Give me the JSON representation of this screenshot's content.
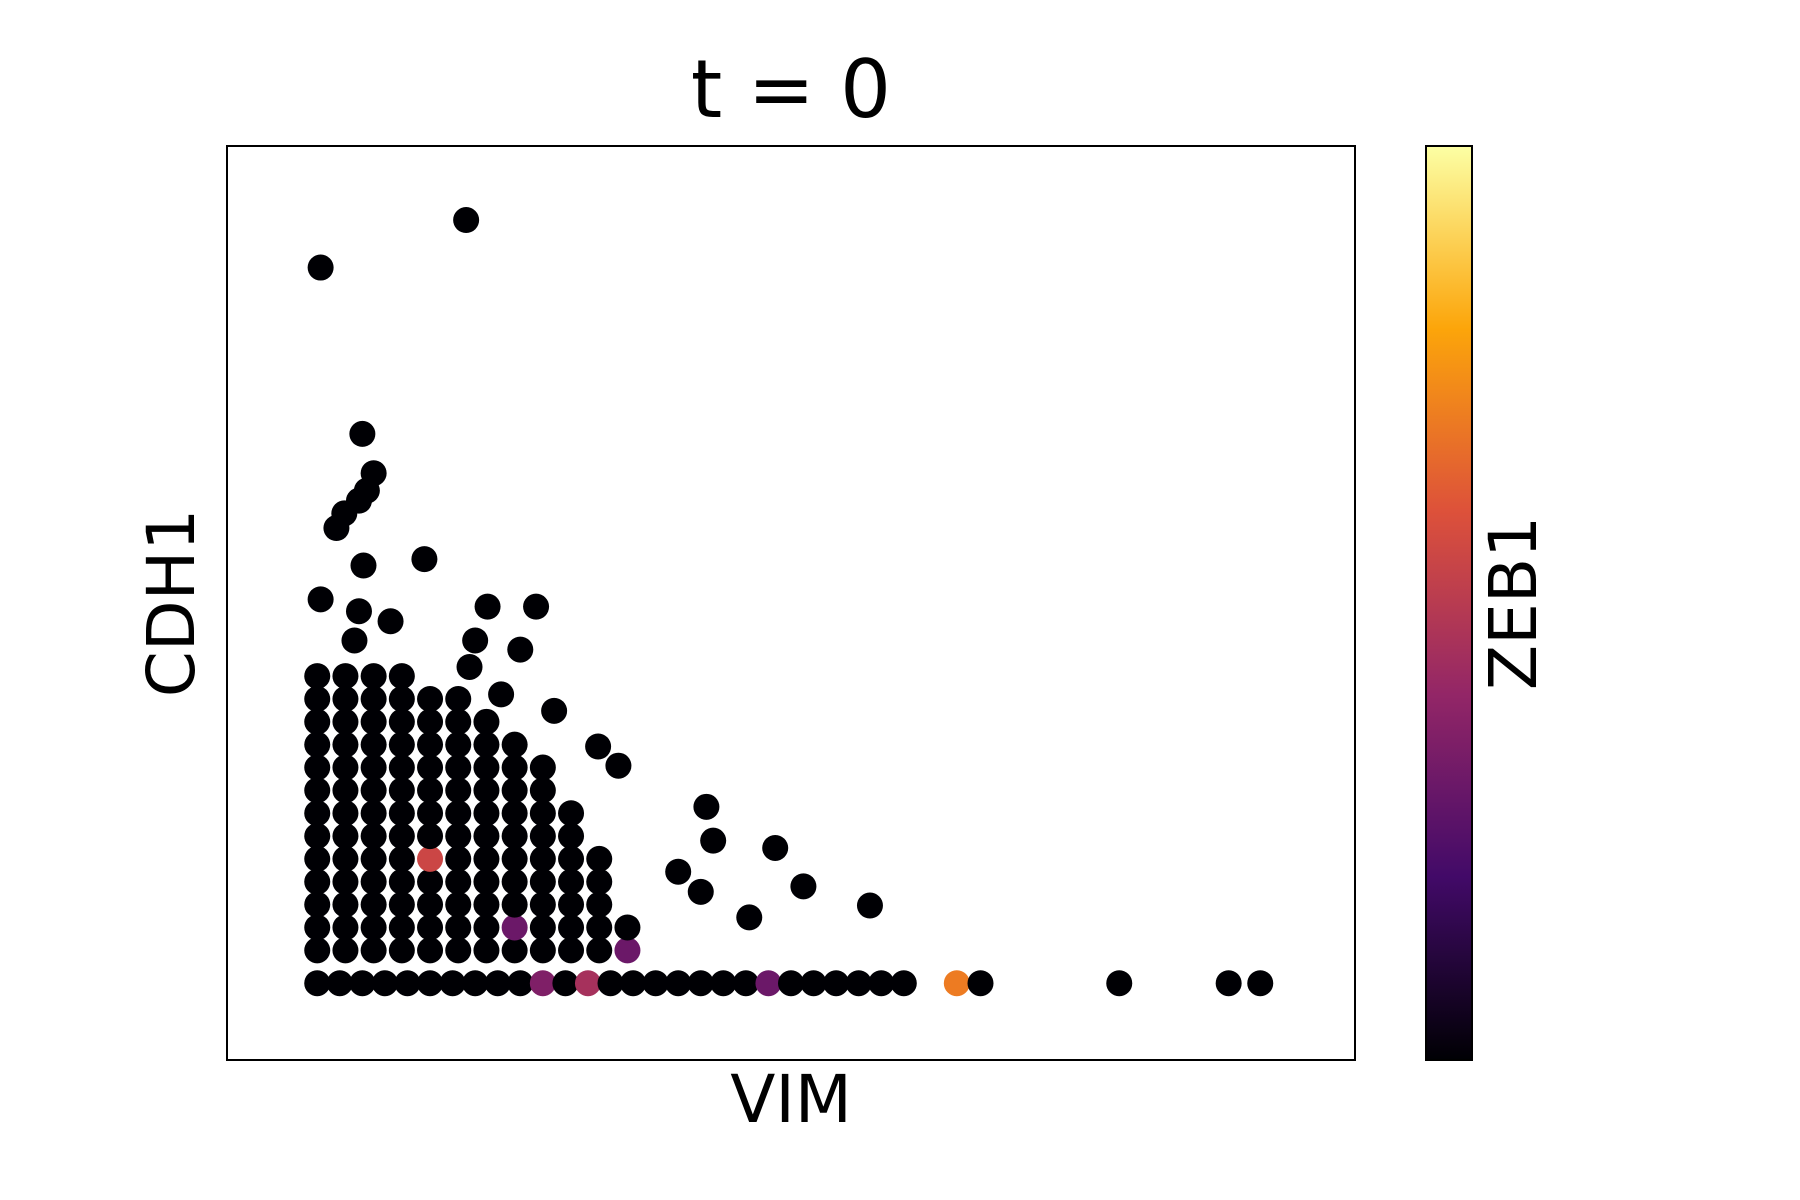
{
  "chart_data": {
    "type": "scatter",
    "title": "t = 0",
    "x_label": "VIM",
    "y_label": "CDH1",
    "colorbar_label": "ZEB1",
    "xlim": [
      0,
      10
    ],
    "ylim": [
      0,
      10
    ],
    "clim": [
      0,
      1
    ],
    "colormap": [
      "#000004",
      "#420a68",
      "#932667",
      "#dd513a",
      "#fca50a",
      "#fcffa4"
    ],
    "x": [
      0.8,
      1.05,
      1.3,
      1.55,
      1.8,
      2.05,
      2.3,
      2.55,
      2.8,
      3.05,
      3.3,
      3.55,
      0.8,
      1.05,
      1.3,
      1.55,
      1.8,
      2.05,
      2.3,
      2.55,
      2.8,
      3.05,
      3.3,
      3.55,
      0.8,
      1.05,
      1.3,
      1.55,
      1.8,
      2.05,
      2.3,
      2.55,
      2.8,
      3.05,
      3.3,
      0.8,
      1.05,
      1.3,
      1.55,
      1.8,
      2.05,
      2.3,
      2.55,
      2.8,
      3.05,
      3.3,
      0.8,
      1.05,
      1.3,
      1.55,
      1.8,
      2.05,
      2.3,
      2.55,
      2.8,
      3.05,
      3.3,
      0.8,
      1.05,
      1.3,
      1.55,
      1.8,
      2.05,
      2.3,
      2.55,
      2.8,
      3.05,
      0.8,
      1.05,
      1.3,
      1.55,
      1.8,
      2.05,
      2.3,
      2.55,
      2.8,
      3.05,
      0.8,
      1.05,
      1.3,
      1.55,
      1.8,
      2.05,
      2.3,
      2.55,
      2.8,
      0.8,
      1.05,
      1.3,
      1.55,
      1.8,
      2.05,
      2.3,
      2.55,
      2.8,
      0.8,
      1.05,
      1.3,
      1.55,
      1.8,
      2.05,
      2.3,
      2.55,
      0.8,
      1.05,
      1.3,
      1.55,
      1.8,
      2.05,
      2.3,
      0.8,
      1.05,
      1.3,
      1.55,
      1.8,
      2.05,
      0.8,
      1.05,
      1.3,
      1.55,
      0.8,
      1.0,
      1.2,
      1.4,
      1.6,
      1.8,
      2.0,
      2.2,
      2.4,
      2.6,
      2.8,
      3.0,
      3.2,
      3.4,
      3.6,
      3.8,
      4.0,
      4.2,
      4.4,
      4.6,
      4.8,
      5.0,
      5.2,
      5.4,
      5.6,
      5.8,
      6.0,
      6.47,
      6.68,
      7.91,
      8.88,
      9.16,
      0.83,
      2.12,
      1.2,
      1.3,
      1.24,
      1.17,
      1.04,
      0.97,
      1.21,
      1.75,
      0.83,
      2.31,
      2.74,
      1.17,
      1.45,
      2.6,
      2.2,
      1.13,
      2.15,
      2.43,
      2.9,
      3.29,
      3.47,
      4.25,
      4.31,
      4.86,
      5.11,
      5.7,
      4.63,
      4.2,
      4.0
    ],
    "values": [
      1.2,
      1.2,
      1.2,
      1.2,
      1.2,
      1.2,
      1.2,
      1.2,
      1.2,
      1.2,
      1.2,
      1.2,
      1.45,
      1.45,
      1.45,
      1.45,
      1.45,
      1.45,
      1.45,
      1.45,
      1.45,
      1.45,
      1.45,
      1.45,
      1.7,
      1.7,
      1.7,
      1.7,
      1.7,
      1.7,
      1.7,
      1.7,
      1.7,
      1.7,
      1.7,
      1.95,
      1.95,
      1.95,
      1.95,
      1.95,
      1.95,
      1.95,
      1.95,
      1.95,
      1.95,
      1.95,
      2.2,
      2.2,
      2.2,
      2.2,
      2.2,
      2.2,
      2.2,
      2.2,
      2.2,
      2.2,
      2.2,
      2.45,
      2.45,
      2.45,
      2.45,
      2.45,
      2.45,
      2.45,
      2.45,
      2.45,
      2.45,
      2.7,
      2.7,
      2.7,
      2.7,
      2.7,
      2.7,
      2.7,
      2.7,
      2.7,
      2.7,
      2.95,
      2.95,
      2.95,
      2.95,
      2.95,
      2.95,
      2.95,
      2.95,
      2.95,
      3.2,
      3.2,
      3.2,
      3.2,
      3.2,
      3.2,
      3.2,
      3.2,
      3.2,
      3.45,
      3.45,
      3.45,
      3.45,
      3.45,
      3.45,
      3.45,
      3.45,
      3.7,
      3.7,
      3.7,
      3.7,
      3.7,
      3.7,
      3.7,
      3.95,
      3.95,
      3.95,
      3.95,
      3.95,
      3.95,
      4.2,
      4.2,
      4.2,
      4.2,
      0.84,
      0.84,
      0.84,
      0.84,
      0.84,
      0.84,
      0.84,
      0.84,
      0.84,
      0.84,
      0.84,
      0.84,
      0.84,
      0.84,
      0.84,
      0.84,
      0.84,
      0.84,
      0.84,
      0.84,
      0.84,
      0.84,
      0.84,
      0.84,
      0.84,
      0.84,
      0.84,
      0.84,
      0.84,
      0.84,
      0.84,
      0.84,
      8.67,
      9.19,
      6.85,
      6.42,
      6.23,
      6.12,
      5.98,
      5.82,
      5.41,
      5.48,
      5.04,
      4.96,
      4.96,
      4.91,
      4.8,
      4.49,
      4.59,
      4.59,
      4.3,
      4.0,
      3.82,
      3.43,
      3.22,
      2.77,
      2.4,
      2.32,
      1.9,
      1.69,
      1.56,
      1.84,
      2.06
    ],
    "z": [
      0,
      0,
      0,
      0,
      0,
      0,
      0,
      0,
      0,
      0,
      0,
      0.3,
      0,
      0,
      0,
      0,
      0,
      0,
      0,
      0.3,
      0,
      0,
      0,
      0,
      0,
      0,
      0,
      0,
      0,
      0,
      0,
      0,
      0,
      0,
      0,
      0,
      0,
      0,
      0,
      0,
      0,
      0,
      0,
      0,
      0,
      0,
      0,
      0,
      0,
      0,
      0.55,
      0,
      0,
      0,
      0,
      0,
      0,
      0,
      0,
      0,
      0,
      0,
      0,
      0,
      0,
      0,
      0,
      0,
      0,
      0,
      0,
      0,
      0,
      0,
      0,
      0,
      0,
      0,
      0,
      0,
      0,
      0,
      0,
      0,
      0,
      0,
      0,
      0,
      0,
      0,
      0,
      0,
      0,
      0,
      0,
      0,
      0,
      0,
      0,
      0,
      0,
      0,
      0,
      0,
      0,
      0,
      0,
      0,
      0,
      0,
      0,
      0,
      0,
      0,
      0,
      0,
      0,
      0,
      0,
      0,
      0,
      0,
      0,
      0,
      0,
      0,
      0,
      0,
      0,
      0,
      0.35,
      0,
      0.45,
      0,
      0,
      0,
      0,
      0,
      0,
      0,
      0.3,
      0,
      0,
      0,
      0,
      0,
      0,
      0.7,
      0,
      0,
      0,
      0,
      0,
      0,
      0,
      0,
      0,
      0,
      0,
      0,
      0,
      0,
      0,
      0,
      0,
      0,
      0,
      0,
      0,
      0,
      0,
      0,
      0,
      0,
      0,
      0,
      0,
      0,
      0,
      0,
      0,
      0,
      0
    ]
  }
}
